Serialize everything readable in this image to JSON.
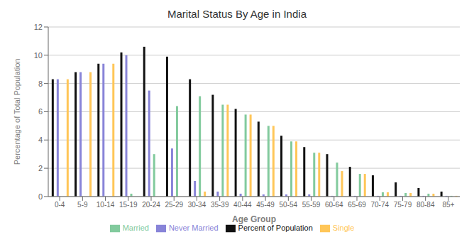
{
  "chart_data": {
    "type": "bar",
    "title": "Marital Status By Age in India",
    "xlabel": "Age Group",
    "ylabel": "Percentage of Total Population",
    "categories": [
      "0-4",
      "5-9",
      "10-14",
      "15-19",
      "20-24",
      "25-29",
      "30-34",
      "35-39",
      "40-44",
      "45-49",
      "50-54",
      "55-59",
      "60-64",
      "65-69",
      "70-74",
      "75-79",
      "80-84",
      "85+"
    ],
    "series": [
      {
        "name": "Percent of Population",
        "color": "#111111",
        "values": [
          8.3,
          8.8,
          9.4,
          10.2,
          10.6,
          9.9,
          8.3,
          7.2,
          6.2,
          5.3,
          4.3,
          3.5,
          3.0,
          2.1,
          1.5,
          1.0,
          0.6,
          0.35
        ]
      },
      {
        "name": "Never Married",
        "color": "#8884d8",
        "values": [
          8.3,
          8.8,
          9.4,
          10.0,
          7.5,
          3.4,
          1.1,
          0.35,
          0.2,
          0.15,
          0.15,
          0.15,
          0.05,
          0.05,
          0.05,
          0.05,
          0.05,
          0.05
        ]
      },
      {
        "name": "Married",
        "color": "#82ca9d",
        "values": [
          0.0,
          0.0,
          0.0,
          0.2,
          3.0,
          6.4,
          7.1,
          6.5,
          5.8,
          5.0,
          3.9,
          3.1,
          2.4,
          1.6,
          0.3,
          0.25,
          0.2,
          0.05
        ]
      },
      {
        "name": "Single",
        "color": "#ffc658",
        "values": [
          8.3,
          8.8,
          9.4,
          0.0,
          0.0,
          0.0,
          0.35,
          6.5,
          5.8,
          5.0,
          3.9,
          3.1,
          1.8,
          1.6,
          0.3,
          0.25,
          0.2,
          0.05
        ]
      }
    ],
    "ylim": [
      0,
      12
    ],
    "yticks": [
      0,
      2,
      4,
      6,
      8,
      10,
      12
    ],
    "grid": true,
    "legend": "bottom"
  }
}
